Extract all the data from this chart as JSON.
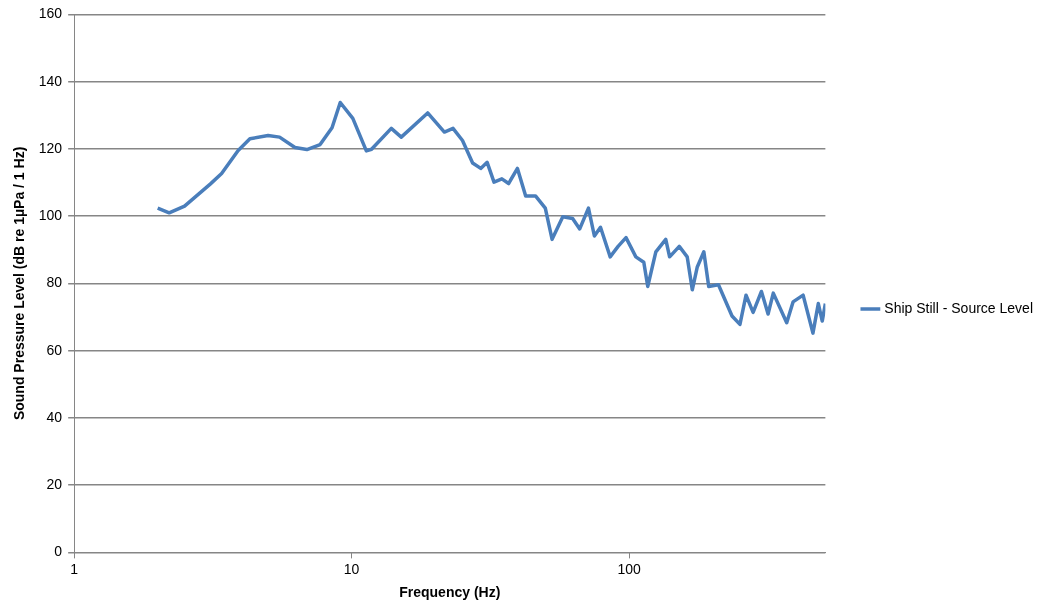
{
  "chart_data": {
    "type": "line",
    "xlabel": "Frequency (Hz)",
    "ylabel": "Sound Pressure Level (dB re 1µPa / 1 Hz)",
    "log": "x",
    "grid": "y",
    "legend": "right",
    "marker": "none",
    "line_style": "solid",
    "xlim": [
      1,
      510
    ],
    "xticks": [
      1,
      10,
      100
    ],
    "ylim": [
      0,
      160
    ],
    "yticks": [
      0,
      20,
      40,
      60,
      80,
      100,
      120,
      140,
      160
    ],
    "series": [
      {
        "name": "Ship Still - Source Level",
        "color": "#4a7ebb",
        "x": [
          2,
          2.2,
          2.5,
          3.1,
          3.4,
          3.9,
          4.3,
          5,
          5.5,
          6.25,
          6.9,
          7.7,
          8.5,
          9.1,
          10.1,
          11.3,
          11.8,
          13.9,
          15.1,
          18.8,
          21.6,
          23.2,
          25.1,
          27.3,
          29.2,
          30.8,
          32.6,
          34.8,
          36.8,
          39.6,
          42.4,
          46,
          49.9,
          52.8,
          57.7,
          62.6,
          66.4,
          71.4,
          75,
          78.9,
          85.5,
          91.3,
          97.5,
          105.8,
          113,
          116.8,
          124.9,
          135.6,
          140,
          151.7,
          162,
          169,
          176,
          186,
          193.7,
          210,
          235,
          251,
          264,
          280,
          300,
          317,
          331,
          370,
          390,
          424,
          460,
          481,
          497,
          510
        ],
        "values": [
          102.4,
          101,
          103,
          109.6,
          112.7,
          119.5,
          123,
          124,
          123.5,
          120.4,
          119.8,
          121.3,
          126.3,
          133.8,
          129.1,
          119.4,
          119.9,
          126.1,
          123.5,
          130.7,
          125,
          126.1,
          122.5,
          115.8,
          114.2,
          116,
          110.1,
          111.1,
          109.7,
          114.2,
          106,
          106,
          102.4,
          93.1,
          99.8,
          99.3,
          96.2,
          102.4,
          94.1,
          96.7,
          87.9,
          91,
          93.6,
          87.9,
          86.3,
          79.1,
          89.4,
          93.1,
          87.9,
          91,
          87.9,
          78.1,
          84.8,
          89.4,
          79.1,
          79.6,
          70.3,
          67.8,
          76.5,
          71.4,
          77.6,
          70.9,
          77.1,
          68.3,
          74.5,
          76.5,
          65.2,
          74,
          68.8,
          74
        ]
      }
    ]
  }
}
